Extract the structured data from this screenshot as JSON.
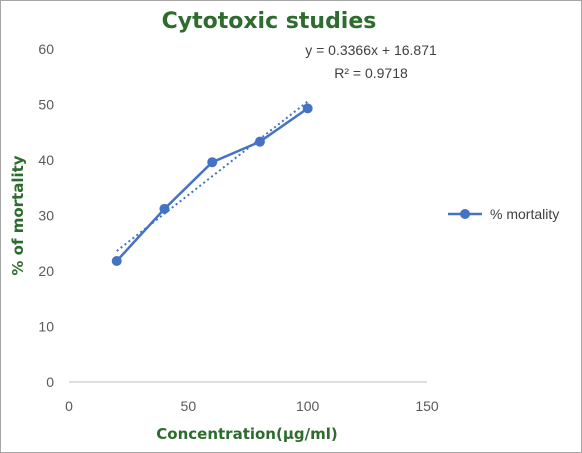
{
  "chart_data": {
    "type": "line",
    "title": "Cytotoxic studies",
    "xlabel": "Concentration(µg/ml)",
    "ylabel": "% of mortality",
    "xlim": [
      0,
      150
    ],
    "ylim": [
      0,
      60
    ],
    "x_ticks": [
      "0",
      "50",
      "100",
      "150"
    ],
    "y_ticks": [
      "0",
      "10",
      "20",
      "30",
      "40",
      "50",
      "60"
    ],
    "grid": false,
    "legend_position": "right",
    "series": [
      {
        "name": "% mortality",
        "color": "#4472c4",
        "marker": "circle",
        "x": [
          20,
          40,
          60,
          80,
          100
        ],
        "y": [
          21.8,
          31.2,
          39.6,
          43.3,
          49.3
        ]
      }
    ],
    "trendline": {
      "type": "linear",
      "style": "dotted",
      "color": "#4472c4",
      "slope": 0.3366,
      "intercept": 16.871,
      "equation": "y = 0.3366x + 16.871",
      "r_squared": "R² = 0.9718"
    }
  }
}
